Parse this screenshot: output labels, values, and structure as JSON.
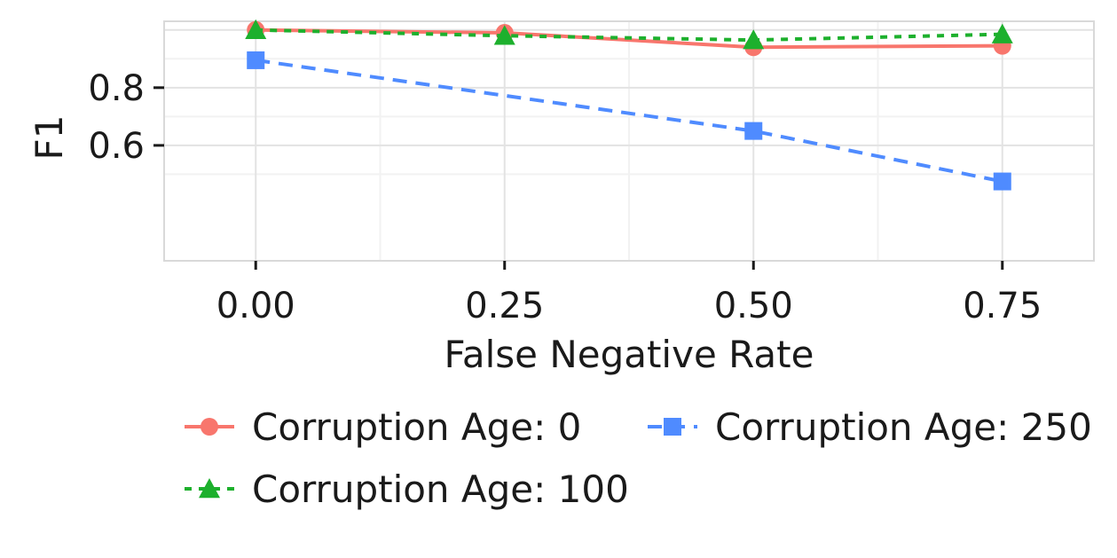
{
  "chart_data": {
    "type": "line",
    "title": "",
    "xlabel": "False Negative Rate",
    "ylabel": "F1",
    "x": [
      0.0,
      0.25,
      0.5,
      0.75
    ],
    "xticks": [
      0.0,
      0.25,
      0.5,
      0.75
    ],
    "xtick_labels": [
      "0.00",
      "0.25",
      "0.50",
      "0.75"
    ],
    "yticks": [
      0.6,
      0.8
    ],
    "ytick_labels": [
      "0.6",
      "0.8"
    ],
    "xlim": [
      -0.092,
      0.842
    ],
    "ylim": [
      0.2,
      1.03
    ],
    "grid": true,
    "legend_position": "bottom",
    "series": [
      {
        "name": "Corruption Age: 0",
        "values": [
          1.0,
          0.99,
          0.94,
          0.945
        ],
        "color": "#F8766D",
        "marker": "circle",
        "dash": "solid"
      },
      {
        "name": "Corruption Age: 100",
        "values": [
          1.0,
          0.98,
          0.965,
          0.985
        ],
        "color": "#1DB02D",
        "marker": "triangle",
        "dash": "dotted"
      },
      {
        "name": "Corruption Age: 250",
        "values": [
          0.895,
          null,
          0.65,
          0.475
        ],
        "color": "#4F8BFF",
        "marker": "square",
        "dash": "dashed"
      }
    ]
  }
}
